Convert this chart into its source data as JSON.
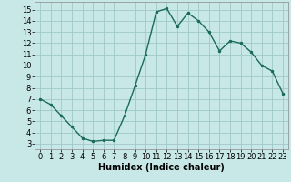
{
  "x": [
    0,
    1,
    2,
    3,
    4,
    5,
    6,
    7,
    8,
    9,
    10,
    11,
    12,
    13,
    14,
    15,
    16,
    17,
    18,
    19,
    20,
    21,
    22,
    23
  ],
  "y": [
    7.0,
    6.5,
    5.5,
    4.5,
    3.5,
    3.2,
    3.3,
    3.3,
    5.5,
    8.2,
    11.0,
    14.8,
    15.1,
    13.5,
    14.7,
    14.0,
    13.0,
    11.3,
    12.2,
    12.0,
    11.2,
    10.0,
    9.5,
    7.5
  ],
  "xlabel": "Humidex (Indice chaleur)",
  "line_color": "#1a6b5a",
  "bg_color": "#c8e8e8",
  "grid_color": "#a0c8c8",
  "xlim": [
    -0.5,
    23.5
  ],
  "ylim": [
    2.5,
    15.7
  ],
  "xticks": [
    0,
    1,
    2,
    3,
    4,
    5,
    6,
    7,
    8,
    9,
    10,
    11,
    12,
    13,
    14,
    15,
    16,
    17,
    18,
    19,
    20,
    21,
    22,
    23
  ],
  "yticks": [
    3,
    4,
    5,
    6,
    7,
    8,
    9,
    10,
    11,
    12,
    13,
    14,
    15
  ],
  "xlabel_fontsize": 7,
  "tick_fontsize": 6
}
